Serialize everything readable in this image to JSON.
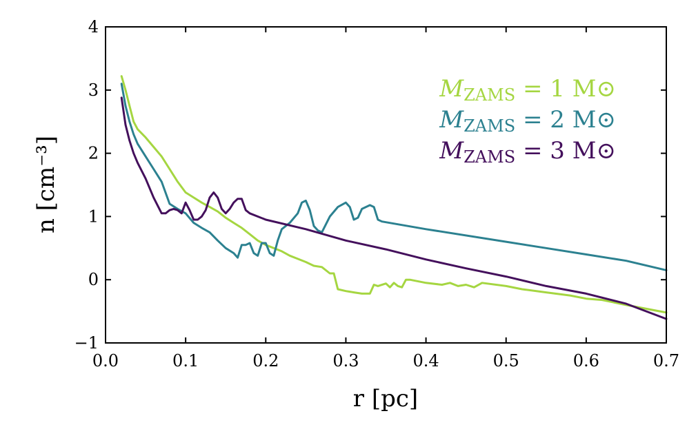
{
  "chart_data": {
    "type": "line",
    "title": "",
    "xlabel": "r [pc]",
    "ylabel": "n [cm⁻³]",
    "xlim": [
      0.0,
      0.7
    ],
    "ylim": [
      -1,
      4
    ],
    "xticks": [
      0.0,
      0.1,
      0.2,
      0.3,
      0.4,
      0.5,
      0.6,
      0.7
    ],
    "yticks": [
      -1,
      0,
      1,
      2,
      3,
      4
    ],
    "xtick_labels": [
      "0.0",
      "0.1",
      "0.2",
      "0.3",
      "0.4",
      "0.5",
      "0.6",
      "0.7"
    ],
    "ytick_labels": [
      "−1",
      "0",
      "1",
      "2",
      "3",
      "4"
    ],
    "grid": false,
    "legend_position": "top-right",
    "series": [
      {
        "name": "M_ZAMS = 1 M⊙",
        "label_main": "M",
        "label_sub": "ZAMS",
        "label_rest": " = 1 M⊙",
        "color": "#a5d641",
        "x": [
          0.02,
          0.025,
          0.03,
          0.035,
          0.04,
          0.05,
          0.06,
          0.07,
          0.08,
          0.09,
          0.1,
          0.11,
          0.12,
          0.13,
          0.14,
          0.15,
          0.16,
          0.17,
          0.18,
          0.19,
          0.2,
          0.21,
          0.22,
          0.23,
          0.24,
          0.25,
          0.26,
          0.27,
          0.28,
          0.285,
          0.29,
          0.3,
          0.31,
          0.32,
          0.33,
          0.335,
          0.34,
          0.35,
          0.355,
          0.36,
          0.365,
          0.37,
          0.375,
          0.38,
          0.4,
          0.42,
          0.43,
          0.44,
          0.45,
          0.46,
          0.47,
          0.5,
          0.52,
          0.55,
          0.58,
          0.6,
          0.62,
          0.65,
          0.7
        ],
        "y": [
          3.22,
          3.0,
          2.75,
          2.5,
          2.38,
          2.25,
          2.1,
          1.95,
          1.75,
          1.55,
          1.38,
          1.3,
          1.22,
          1.15,
          1.08,
          0.98,
          0.9,
          0.82,
          0.72,
          0.62,
          0.55,
          0.5,
          0.45,
          0.38,
          0.33,
          0.28,
          0.22,
          0.2,
          0.1,
          0.1,
          -0.15,
          -0.18,
          -0.2,
          -0.22,
          -0.22,
          -0.08,
          -0.1,
          -0.06,
          -0.12,
          -0.05,
          -0.1,
          -0.12,
          0.0,
          0.0,
          -0.05,
          -0.08,
          -0.05,
          -0.1,
          -0.08,
          -0.12,
          -0.05,
          -0.1,
          -0.15,
          -0.2,
          -0.25,
          -0.3,
          -0.32,
          -0.4,
          -0.52
        ]
      },
      {
        "name": "M_ZAMS = 2 M⊙",
        "label_main": "M",
        "label_sub": "ZAMS",
        "label_rest": " = 2 M⊙",
        "color": "#2c8190",
        "x": [
          0.02,
          0.025,
          0.03,
          0.035,
          0.04,
          0.05,
          0.06,
          0.07,
          0.08,
          0.09,
          0.1,
          0.11,
          0.12,
          0.13,
          0.14,
          0.15,
          0.16,
          0.165,
          0.17,
          0.175,
          0.18,
          0.185,
          0.19,
          0.195,
          0.2,
          0.205,
          0.21,
          0.215,
          0.22,
          0.23,
          0.24,
          0.245,
          0.25,
          0.255,
          0.26,
          0.265,
          0.27,
          0.28,
          0.29,
          0.3,
          0.305,
          0.31,
          0.315,
          0.32,
          0.33,
          0.335,
          0.34,
          0.345,
          0.4,
          0.5,
          0.55,
          0.6,
          0.65,
          0.7
        ],
        "y": [
          3.1,
          2.75,
          2.5,
          2.3,
          2.15,
          1.95,
          1.75,
          1.55,
          1.2,
          1.12,
          1.05,
          0.9,
          0.82,
          0.75,
          0.62,
          0.5,
          0.42,
          0.35,
          0.55,
          0.55,
          0.58,
          0.42,
          0.38,
          0.58,
          0.58,
          0.42,
          0.38,
          0.62,
          0.8,
          0.9,
          1.05,
          1.22,
          1.25,
          1.1,
          0.85,
          0.78,
          0.75,
          1.0,
          1.15,
          1.22,
          1.15,
          0.95,
          0.98,
          1.12,
          1.18,
          1.15,
          0.95,
          0.92,
          0.8,
          0.6,
          0.5,
          0.4,
          0.3,
          0.15
        ]
      },
      {
        "name": "M_ZAMS = 3 M⊙",
        "label_main": "M",
        "label_sub": "ZAMS",
        "label_rest": " = 3 M⊙",
        "color": "#44105c",
        "x": [
          0.02,
          0.025,
          0.03,
          0.035,
          0.04,
          0.05,
          0.06,
          0.07,
          0.075,
          0.08,
          0.085,
          0.09,
          0.095,
          0.1,
          0.105,
          0.11,
          0.115,
          0.12,
          0.125,
          0.13,
          0.135,
          0.14,
          0.145,
          0.15,
          0.155,
          0.16,
          0.165,
          0.17,
          0.175,
          0.18,
          0.2,
          0.25,
          0.3,
          0.35,
          0.4,
          0.45,
          0.5,
          0.55,
          0.6,
          0.65,
          0.7
        ],
        "y": [
          2.88,
          2.45,
          2.2,
          2.0,
          1.85,
          1.6,
          1.3,
          1.05,
          1.05,
          1.1,
          1.12,
          1.1,
          1.05,
          1.22,
          1.1,
          0.95,
          0.95,
          1.0,
          1.1,
          1.3,
          1.38,
          1.3,
          1.12,
          1.05,
          1.12,
          1.22,
          1.28,
          1.28,
          1.1,
          1.05,
          0.95,
          0.8,
          0.62,
          0.48,
          0.32,
          0.18,
          0.05,
          -0.1,
          -0.22,
          -0.38,
          -0.62
        ]
      }
    ]
  }
}
